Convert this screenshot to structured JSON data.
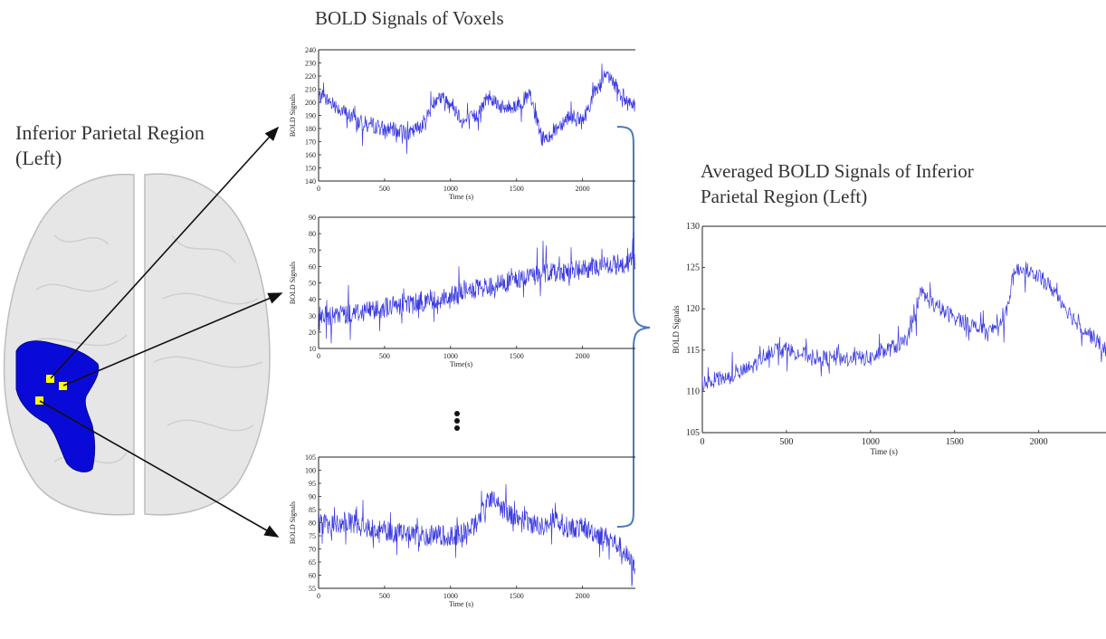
{
  "region_label": {
    "line1": "Inferior Parietal Region",
    "line2": "(Left)"
  },
  "voxels_title": "BOLD Signals of Voxels",
  "averaged_title": {
    "line1": "Averaged BOLD Signals of Inferior",
    "line2": "Parietal Region (Left)"
  },
  "colors": {
    "signal": "#3a3ae0",
    "region": "#0a0ad8",
    "voxel_marker": "#ffff00",
    "brace": "#4a7ab8",
    "brain": "#d8d8d8"
  },
  "chart_data": [
    {
      "id": "voxel-1",
      "type": "line",
      "xlabel": "Time (s)",
      "ylabel": "BOLD Signals",
      "xlim": [
        0,
        2400
      ],
      "ylim": [
        140,
        240
      ],
      "xticks": [
        0,
        500,
        1000,
        1500,
        2000
      ],
      "yticks": [
        140,
        150,
        160,
        170,
        180,
        190,
        200,
        210,
        220,
        230,
        240
      ],
      "series": [
        {
          "x": [
            0,
            100,
            200,
            300,
            400,
            500,
            600,
            700,
            800,
            900,
            1000,
            1100,
            1200,
            1300,
            1400,
            1500,
            1600,
            1700,
            1800,
            1900,
            2000,
            2100,
            2200,
            2300,
            2400
          ],
          "values": [
            205,
            200,
            192,
            185,
            183,
            180,
            178,
            176,
            185,
            205,
            200,
            185,
            190,
            205,
            195,
            198,
            205,
            170,
            180,
            190,
            185,
            210,
            220,
            205,
            198
          ]
        }
      ]
    },
    {
      "id": "voxel-2",
      "type": "line",
      "xlabel": "Time(s)",
      "ylabel": "BOLD Signals",
      "xlim": [
        0,
        2400
      ],
      "ylim": [
        10,
        90
      ],
      "xticks": [
        0,
        500,
        1000,
        1500,
        2000
      ],
      "yticks": [
        10,
        20,
        30,
        40,
        50,
        60,
        70,
        80,
        90
      ],
      "series": [
        {
          "x": [
            0,
            100,
            200,
            300,
            400,
            500,
            600,
            700,
            800,
            900,
            1000,
            1100,
            1200,
            1300,
            1400,
            1500,
            1600,
            1700,
            1800,
            1900,
            2000,
            2100,
            2200,
            2300,
            2400
          ],
          "values": [
            30,
            29,
            31,
            32,
            34,
            35,
            36,
            38,
            39,
            40,
            42,
            44,
            46,
            48,
            50,
            52,
            54,
            56,
            57,
            57,
            58,
            60,
            60,
            62,
            63
          ]
        }
      ]
    },
    {
      "id": "voxel-n",
      "type": "line",
      "xlabel": "Time (s)",
      "ylabel": "BOLD Signals",
      "xlim": [
        0,
        2400
      ],
      "ylim": [
        55,
        105
      ],
      "xticks": [
        0,
        500,
        1000,
        1500,
        2000
      ],
      "yticks": [
        55,
        60,
        65,
        70,
        75,
        80,
        85,
        90,
        95,
        100,
        105
      ],
      "series": [
        {
          "x": [
            0,
            100,
            200,
            300,
            400,
            500,
            600,
            700,
            800,
            900,
            1000,
            1100,
            1200,
            1300,
            1400,
            1500,
            1600,
            1700,
            1800,
            1900,
            2000,
            2100,
            2200,
            2300,
            2400
          ],
          "values": [
            80,
            79,
            80,
            79,
            78,
            77,
            76,
            76,
            75,
            75,
            75,
            76,
            80,
            90,
            85,
            82,
            80,
            79,
            80,
            78,
            78,
            76,
            74,
            70,
            62
          ]
        }
      ]
    },
    {
      "id": "averaged",
      "type": "line",
      "xlabel": "Time (s)",
      "ylabel": "BOLD Signals",
      "xlim": [
        0,
        2400
      ],
      "ylim": [
        105,
        130
      ],
      "xticks": [
        0,
        500,
        1000,
        1500,
        2000
      ],
      "yticks": [
        105,
        110,
        115,
        120,
        125,
        130
      ],
      "series": [
        {
          "x": [
            0,
            100,
            200,
            300,
            400,
            500,
            600,
            700,
            800,
            900,
            1000,
            1100,
            1200,
            1250,
            1300,
            1400,
            1500,
            1600,
            1700,
            1800,
            1850,
            1900,
            2000,
            2100,
            2200,
            2300,
            2400
          ],
          "values": [
            111,
            111.5,
            112,
            113,
            115,
            115,
            114.5,
            114,
            114,
            114,
            114,
            115,
            116,
            117.5,
            122,
            120,
            119,
            118,
            117,
            119,
            124,
            125,
            124,
            122,
            119,
            117,
            115
          ]
        }
      ]
    }
  ]
}
